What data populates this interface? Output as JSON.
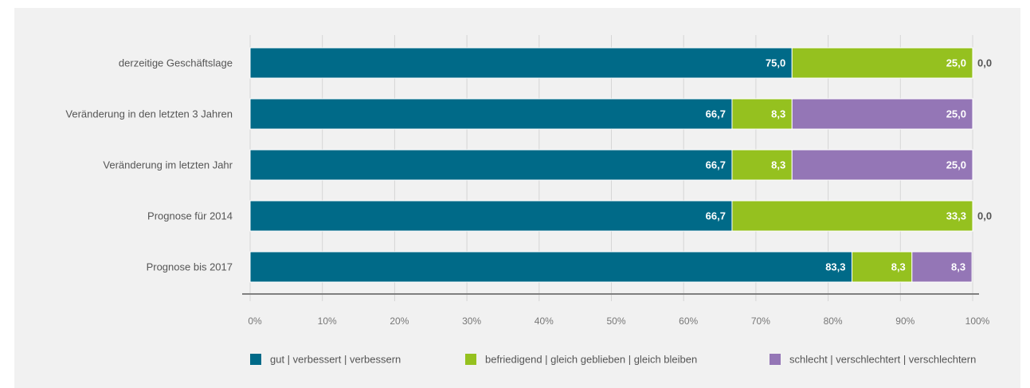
{
  "chart_data": {
    "type": "bar",
    "orientation": "horizontal",
    "stacked": true,
    "categories": [
      "derzeitige Geschäftslage",
      "Veränderung in den letzten 3 Jahren",
      "Veränderung im letzten Jahr",
      "Prognose für 2014",
      "Prognose bis 2017"
    ],
    "series": [
      {
        "name": "gut | verbessert | verbessern",
        "color": "#006a88",
        "values": [
          75.0,
          66.7,
          66.7,
          66.7,
          83.3
        ],
        "labels": [
          "75,0",
          "66,7",
          "66,7",
          "66,7",
          "83,3"
        ]
      },
      {
        "name": "befriedigend | gleich geblieben | gleich bleiben",
        "color": "#95c11f",
        "values": [
          25.0,
          8.3,
          8.3,
          33.3,
          8.3
        ],
        "labels": [
          "25,0",
          "8,3",
          "8,3",
          "33,3",
          "8,3"
        ]
      },
      {
        "name": "schlecht | verschlechtert | verschlechtern",
        "color": "#9476b6",
        "values": [
          0.0,
          25.0,
          25.0,
          0.0,
          8.3
        ],
        "labels": [
          "0,0",
          "25,0",
          "25,0",
          "0,0",
          "8,3"
        ]
      }
    ],
    "xlim": [
      0,
      100
    ],
    "x_ticks": [
      "0%",
      "10%",
      "20%",
      "30%",
      "40%",
      "50%",
      "60%",
      "70%",
      "80%",
      "90%",
      "100%"
    ],
    "grid": true,
    "legend_position": "bottom"
  }
}
